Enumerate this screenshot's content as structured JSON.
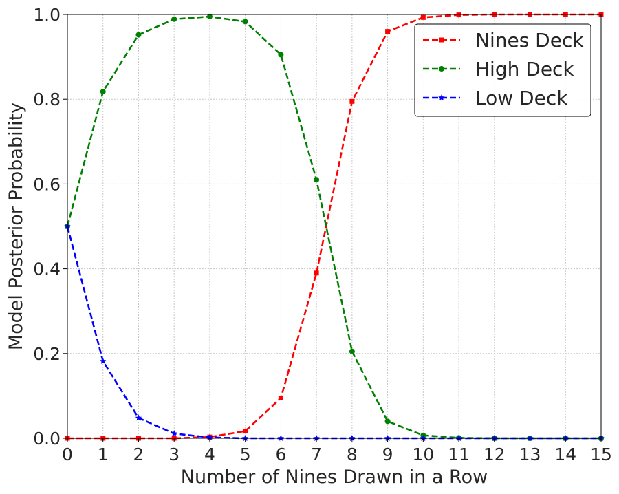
{
  "chart_data": {
    "type": "line",
    "xlabel": "Number of Nines Drawn in a Row",
    "ylabel": "Model Posterior Probability",
    "xlim": [
      0,
      15
    ],
    "ylim": [
      0,
      1
    ],
    "x_ticks": [
      "0",
      "1",
      "2",
      "3",
      "4",
      "5",
      "6",
      "7",
      "8",
      "9",
      "10",
      "11",
      "12",
      "13",
      "14",
      "15"
    ],
    "y_ticks": [
      "0.0",
      "0.2",
      "0.4",
      "0.6",
      "0.8",
      "1.0"
    ],
    "grid": true,
    "legend_position": "top-right",
    "x": [
      0,
      1,
      2,
      3,
      4,
      5,
      6,
      7,
      8,
      9,
      10,
      11,
      12,
      13,
      14,
      15
    ],
    "series": [
      {
        "name": "Nines Deck",
        "color": "#ff0000",
        "marker": "square",
        "values": [
          0.0,
          0.0,
          0.0,
          0.0,
          0.003,
          0.017,
          0.095,
          0.39,
          0.795,
          0.96,
          0.993,
          0.999,
          1.0,
          1.0,
          1.0,
          1.0
        ]
      },
      {
        "name": "High Deck",
        "color": "#008000",
        "marker": "circle",
        "values": [
          0.5,
          0.818,
          0.952,
          0.989,
          0.995,
          0.983,
          0.905,
          0.61,
          0.205,
          0.04,
          0.007,
          0.001,
          0.0,
          0.0,
          0.0,
          0.0
        ]
      },
      {
        "name": "Low Deck",
        "color": "#0000ff",
        "marker": "star",
        "values": [
          0.5,
          0.182,
          0.048,
          0.011,
          0.002,
          0.0,
          0.0,
          0.0,
          0.0,
          0.0,
          0.0,
          0.0,
          0.0,
          0.0,
          0.0,
          0.0
        ]
      }
    ]
  }
}
